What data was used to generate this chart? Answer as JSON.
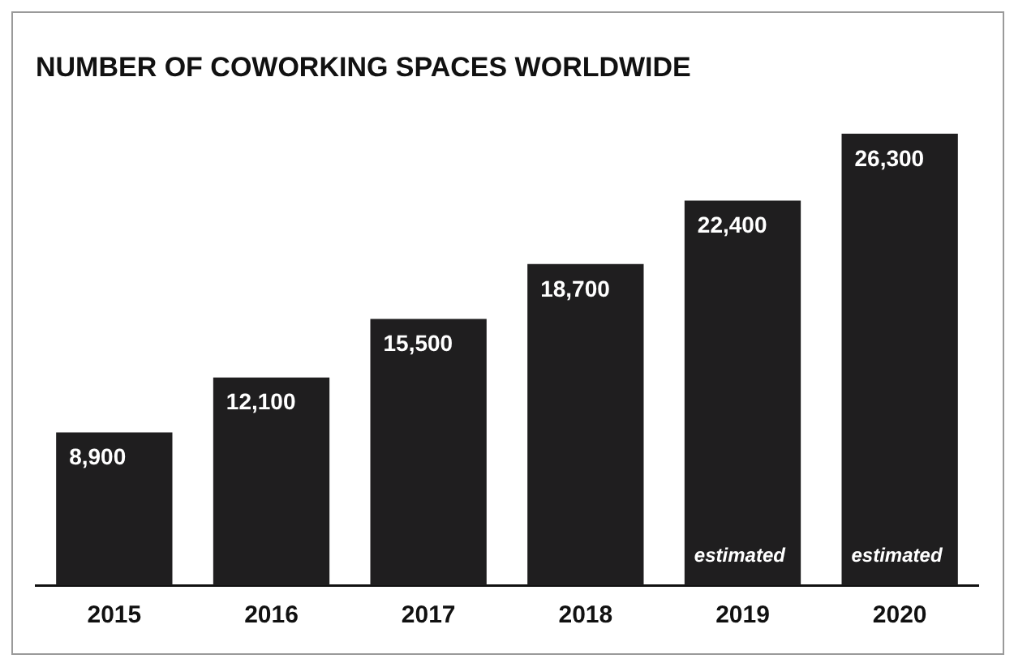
{
  "chart_data": {
    "type": "bar",
    "title": "NUMBER OF COWORKING SPACES WORLDWIDE",
    "categories": [
      "2015",
      "2016",
      "2017",
      "2018",
      "2019",
      "2020"
    ],
    "values": [
      8900,
      12100,
      15500,
      18700,
      22400,
      26300
    ],
    "value_labels": [
      "8,900",
      "12,100",
      "15,500",
      "18,700",
      "22,400",
      "26,300"
    ],
    "color": "#1f1e1f",
    "annotations": [
      "estimated",
      "estimated"
    ]
  }
}
